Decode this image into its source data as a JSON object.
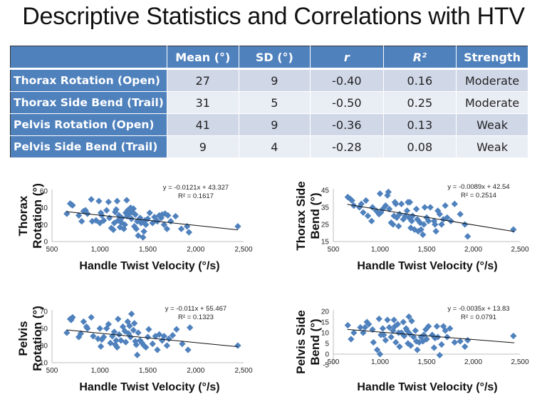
{
  "title": "Descriptive Statistics and Correlations with HTV",
  "table": {
    "headers": [
      "",
      "Mean (°)",
      "SD (°)",
      "r",
      "R²",
      "Strength"
    ],
    "rows": [
      {
        "label": "Thorax Rotation (Open)",
        "mean": "27",
        "sd": "9",
        "r": "-0.40",
        "r2": "0.16",
        "strength": "Moderate"
      },
      {
        "label": "Thorax Side Bend (Trail)",
        "mean": "31",
        "sd": "5",
        "r": "-0.50",
        "r2": "0.25",
        "strength": "Moderate"
      },
      {
        "label": "Pelvis Rotation (Open)",
        "mean": "41",
        "sd": "9",
        "r": "-0.36",
        "r2": "0.13",
        "strength": "Weak"
      },
      {
        "label": "Pelvis Side Bend (Trail)",
        "mean": "9",
        "sd": "4",
        "r": "-0.28",
        "r2": "0.08",
        "strength": "Weak"
      }
    ],
    "colors": {
      "header": "#4f81bd",
      "odd": "#d0d8e8",
      "even": "#e9edf4"
    }
  },
  "chart_data": [
    {
      "type": "scatter",
      "id": "thorax-rotation",
      "ylabel_lines": [
        "Thorax",
        "Rotation (°)"
      ],
      "xlabel": "Handle Twist Velocity (°/s)",
      "xlim": [
        500,
        2500
      ],
      "xticks": [
        500,
        1000,
        1500,
        2000,
        2500
      ],
      "xtick_labels": [
        "500",
        "1,000",
        "1,500",
        "2,000",
        "2,500"
      ],
      "ylim": [
        0,
        60
      ],
      "yticks": [
        0,
        20,
        40,
        60
      ],
      "trendline": {
        "slope": -0.0121,
        "intercept": 43.327,
        "equation": "y = -0.0121x + 43.327",
        "r2_label": "R² = 0.1617"
      },
      "marker_color": "#4f81bd",
      "points": [
        [
          655,
          33
        ],
        [
          690,
          45
        ],
        [
          700,
          44
        ],
        [
          715,
          43
        ],
        [
          780,
          31
        ],
        [
          810,
          24
        ],
        [
          830,
          36
        ],
        [
          850,
          37
        ],
        [
          870,
          33
        ],
        [
          910,
          50
        ],
        [
          920,
          24
        ],
        [
          960,
          25
        ],
        [
          990,
          48
        ],
        [
          1000,
          22
        ],
        [
          1010,
          34
        ],
        [
          1020,
          31
        ],
        [
          1040,
          25
        ],
        [
          1070,
          37
        ],
        [
          1090,
          47
        ],
        [
          1100,
          28
        ],
        [
          1120,
          16
        ],
        [
          1140,
          14
        ],
        [
          1150,
          22
        ],
        [
          1160,
          35
        ],
        [
          1170,
          38
        ],
        [
          1180,
          48
        ],
        [
          1190,
          25
        ],
        [
          1200,
          31
        ],
        [
          1210,
          17
        ],
        [
          1220,
          23
        ],
        [
          1230,
          28
        ],
        [
          1250,
          15
        ],
        [
          1260,
          20
        ],
        [
          1270,
          34
        ],
        [
          1280,
          49
        ],
        [
          1285,
          30
        ],
        [
          1290,
          37
        ],
        [
          1300,
          32
        ],
        [
          1310,
          36
        ],
        [
          1320,
          40
        ],
        [
          1330,
          27
        ],
        [
          1340,
          35
        ],
        [
          1350,
          39
        ],
        [
          1360,
          18
        ],
        [
          1370,
          32
        ],
        [
          1380,
          15
        ],
        [
          1390,
          24
        ],
        [
          1400,
          7
        ],
        [
          1420,
          28
        ],
        [
          1430,
          22
        ],
        [
          1450,
          5
        ],
        [
          1460,
          12
        ],
        [
          1470,
          25
        ],
        [
          1480,
          20
        ],
        [
          1500,
          27
        ],
        [
          1520,
          34
        ],
        [
          1550,
          22
        ],
        [
          1570,
          29
        ],
        [
          1590,
          25
        ],
        [
          1600,
          24
        ],
        [
          1620,
          31
        ],
        [
          1640,
          28
        ],
        [
          1650,
          32
        ],
        [
          1670,
          20
        ],
        [
          1680,
          33
        ],
        [
          1700,
          15
        ],
        [
          1710,
          31
        ],
        [
          1740,
          24
        ],
        [
          1790,
          30
        ],
        [
          1850,
          15
        ],
        [
          1910,
          18
        ],
        [
          1930,
          11
        ],
        [
          2440,
          18
        ]
      ]
    },
    {
      "type": "scatter",
      "id": "thorax-side-bend",
      "ylabel_lines": [
        "Thorax  Side",
        "Bend (°)"
      ],
      "xlabel": "Handle Twist Velocity (°/s)",
      "xlim": [
        500,
        2500
      ],
      "xticks": [
        500,
        1000,
        1500,
        2000,
        2500
      ],
      "xtick_labels": [
        "500",
        "1,000",
        "1,500",
        "2,000",
        "2,500"
      ],
      "ylim": [
        15,
        45
      ],
      "yticks": [
        15,
        25,
        35,
        45
      ],
      "trendline": {
        "slope": -0.0089,
        "intercept": 42.54,
        "equation": "y = -0.0089x + 42.54",
        "r2_label": "R² = 0.2514"
      },
      "marker_color": "#4f81bd",
      "points": [
        [
          655,
          41
        ],
        [
          680,
          40
        ],
        [
          700,
          39
        ],
        [
          720,
          36
        ],
        [
          780,
          35
        ],
        [
          800,
          37
        ],
        [
          820,
          32
        ],
        [
          850,
          39
        ],
        [
          870,
          30
        ],
        [
          910,
          27
        ],
        [
          920,
          35
        ],
        [
          960,
          33
        ],
        [
          990,
          31
        ],
        [
          1000,
          43
        ],
        [
          1010,
          32
        ],
        [
          1030,
          34
        ],
        [
          1060,
          36
        ],
        [
          1080,
          42
        ],
        [
          1090,
          44
        ],
        [
          1100,
          34
        ],
        [
          1120,
          26
        ],
        [
          1140,
          25
        ],
        [
          1150,
          30
        ],
        [
          1160,
          38
        ],
        [
          1170,
          37
        ],
        [
          1180,
          29
        ],
        [
          1200,
          24
        ],
        [
          1210,
          31
        ],
        [
          1230,
          37
        ],
        [
          1250,
          28
        ],
        [
          1270,
          30
        ],
        [
          1290,
          33
        ],
        [
          1300,
          38
        ],
        [
          1310,
          29
        ],
        [
          1320,
          38
        ],
        [
          1330,
          23
        ],
        [
          1340,
          27
        ],
        [
          1350,
          30
        ],
        [
          1370,
          22
        ],
        [
          1390,
          34
        ],
        [
          1400,
          28
        ],
        [
          1410,
          21
        ],
        [
          1430,
          26
        ],
        [
          1440,
          22
        ],
        [
          1460,
          19
        ],
        [
          1470,
          25
        ],
        [
          1480,
          35
        ],
        [
          1500,
          29
        ],
        [
          1520,
          27
        ],
        [
          1540,
          35
        ],
        [
          1580,
          27
        ],
        [
          1590,
          25
        ],
        [
          1600,
          21
        ],
        [
          1620,
          33
        ],
        [
          1640,
          31
        ],
        [
          1660,
          25
        ],
        [
          1680,
          28
        ],
        [
          1700,
          36
        ],
        [
          1720,
          29
        ],
        [
          1760,
          27
        ],
        [
          1800,
          37
        ],
        [
          1860,
          31
        ],
        [
          1910,
          25
        ],
        [
          1940,
          18
        ],
        [
          2430,
          22
        ]
      ]
    },
    {
      "type": "scatter",
      "id": "pelvis-rotation",
      "ylabel_lines": [
        "Pelvis",
        "Rotation (°)"
      ],
      "xlabel": "Handle Twist Velocity (°/s)",
      "xlim": [
        500,
        2500
      ],
      "xticks": [
        500,
        1000,
        1500,
        2000,
        2500
      ],
      "xtick_labels": [
        "500",
        "1,000",
        "1,500",
        "2,000",
        "2,500"
      ],
      "ylim": [
        10,
        70
      ],
      "yticks": [
        10,
        30,
        50,
        70
      ],
      "trendline": {
        "slope": -0.011,
        "intercept": 55.467,
        "equation": "y = -0.011x + 55.467",
        "r2_label": "R² = 0.1323"
      },
      "marker_color": "#4f81bd",
      "points": [
        [
          655,
          45
        ],
        [
          690,
          61
        ],
        [
          700,
          60
        ],
        [
          715,
          63
        ],
        [
          780,
          40
        ],
        [
          800,
          44
        ],
        [
          830,
          58
        ],
        [
          860,
          52
        ],
        [
          870,
          50
        ],
        [
          910,
          63
        ],
        [
          930,
          41
        ],
        [
          980,
          38
        ],
        [
          1000,
          50
        ],
        [
          1010,
          29
        ],
        [
          1020,
          37
        ],
        [
          1040,
          40
        ],
        [
          1070,
          50
        ],
        [
          1090,
          55
        ],
        [
          1110,
          33
        ],
        [
          1130,
          41
        ],
        [
          1150,
          46
        ],
        [
          1160,
          31
        ],
        [
          1170,
          36
        ],
        [
          1180,
          28
        ],
        [
          1190,
          61
        ],
        [
          1200,
          43
        ],
        [
          1220,
          36
        ],
        [
          1240,
          52
        ],
        [
          1260,
          47
        ],
        [
          1270,
          34
        ],
        [
          1290,
          58
        ],
        [
          1300,
          44
        ],
        [
          1310,
          53
        ],
        [
          1320,
          40
        ],
        [
          1330,
          67
        ],
        [
          1350,
          48
        ],
        [
          1360,
          56
        ],
        [
          1370,
          35
        ],
        [
          1380,
          31
        ],
        [
          1390,
          19
        ],
        [
          1400,
          45
        ],
        [
          1420,
          36
        ],
        [
          1440,
          33
        ],
        [
          1460,
          30
        ],
        [
          1480,
          28
        ],
        [
          1500,
          40
        ],
        [
          1510,
          49
        ],
        [
          1550,
          32
        ],
        [
          1580,
          41
        ],
        [
          1600,
          25
        ],
        [
          1620,
          43
        ],
        [
          1650,
          36
        ],
        [
          1670,
          41
        ],
        [
          1700,
          30
        ],
        [
          1720,
          38
        ],
        [
          1760,
          42
        ],
        [
          1800,
          49
        ],
        [
          1860,
          32
        ],
        [
          1920,
          25
        ],
        [
          1940,
          51
        ],
        [
          2440,
          30
        ]
      ]
    },
    {
      "type": "scatter",
      "id": "pelvis-side-bend",
      "ylabel_lines": [
        "Pelvis Side",
        "Bend (°)"
      ],
      "xlabel": "Handle Twist Velocity (°/s)",
      "xlim": [
        500,
        2500
      ],
      "xticks": [
        500,
        1000,
        1500,
        2000,
        2500
      ],
      "xtick_labels": [
        "500",
        "1,000",
        "1,500",
        "2,000",
        "2,500"
      ],
      "ylim": [
        -5,
        20
      ],
      "yticks": [
        -5,
        0,
        5,
        10,
        15,
        20
      ],
      "trendline": {
        "slope": -0.0035,
        "intercept": 13.83,
        "equation": "y = -0.0035x + 13.83",
        "r2_label": "R² = 0.0791"
      },
      "marker_color": "#4f81bd",
      "points": [
        [
          655,
          13.5
        ],
        [
          690,
          7
        ],
        [
          720,
          10
        ],
        [
          790,
          12.5
        ],
        [
          820,
          10
        ],
        [
          840,
          12.5
        ],
        [
          860,
          15
        ],
        [
          880,
          14
        ],
        [
          920,
          11.5
        ],
        [
          930,
          5.5
        ],
        [
          970,
          2
        ],
        [
          990,
          16.5
        ],
        [
          1000,
          0
        ],
        [
          1010,
          9
        ],
        [
          1030,
          12
        ],
        [
          1040,
          9
        ],
        [
          1060,
          6.5
        ],
        [
          1080,
          16
        ],
        [
          1100,
          12.5
        ],
        [
          1120,
          8
        ],
        [
          1140,
          11
        ],
        [
          1150,
          16
        ],
        [
          1160,
          13
        ],
        [
          1170,
          5.5
        ],
        [
          1190,
          14
        ],
        [
          1200,
          10
        ],
        [
          1210,
          3.5
        ],
        [
          1230,
          10
        ],
        [
          1250,
          15
        ],
        [
          1260,
          8.5
        ],
        [
          1280,
          12
        ],
        [
          1290,
          11
        ],
        [
          1300,
          5
        ],
        [
          1310,
          17.5
        ],
        [
          1320,
          9.5
        ],
        [
          1330,
          4
        ],
        [
          1340,
          15.5
        ],
        [
          1360,
          8
        ],
        [
          1380,
          11
        ],
        [
          1390,
          6
        ],
        [
          1400,
          2
        ],
        [
          1420,
          5.5
        ],
        [
          1440,
          8
        ],
        [
          1460,
          6
        ],
        [
          1470,
          9
        ],
        [
          1490,
          11.5
        ],
        [
          1500,
          7
        ],
        [
          1520,
          13
        ],
        [
          1560,
          9
        ],
        [
          1580,
          3
        ],
        [
          1590,
          7.5
        ],
        [
          1610,
          13
        ],
        [
          1620,
          8
        ],
        [
          1640,
          -0.5
        ],
        [
          1660,
          4.5
        ],
        [
          1680,
          13
        ],
        [
          1700,
          11
        ],
        [
          1720,
          8
        ],
        [
          1750,
          12
        ],
        [
          1800,
          5.5
        ],
        [
          1860,
          6
        ],
        [
          1910,
          3.5
        ],
        [
          1940,
          6.5
        ],
        [
          2430,
          8.5
        ]
      ]
    }
  ]
}
